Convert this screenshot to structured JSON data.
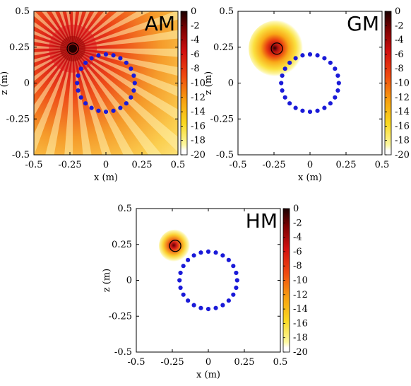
{
  "chart_data": [
    {
      "type": "heatmap",
      "panel_label": "AM",
      "xlabel": "x (m)",
      "ylabel": "z (m)",
      "xlim": [
        -0.5,
        0.5
      ],
      "ylim": [
        -0.5,
        0.5
      ],
      "xticks": [
        "-0.5",
        "-0.25",
        "0",
        "0.25",
        "0.5"
      ],
      "yticks": [
        "0.5",
        "0.25",
        "0",
        "-0.25",
        "-0.5"
      ],
      "colorbar": {
        "range": [
          -20,
          0
        ],
        "ticks": [
          "0",
          "-2",
          "-4",
          "-6",
          "-8",
          "-10",
          "-12",
          "-14",
          "-16",
          "-18",
          "-20"
        ]
      },
      "source": {
        "x": -0.23,
        "z": 0.24
      },
      "array": {
        "center_x": 0.0,
        "center_z": 0.0,
        "radius": 0.2,
        "elements": 24,
        "color": "#1a1ad8"
      },
      "field": "wide"
    },
    {
      "type": "heatmap",
      "panel_label": "GM",
      "xlabel": "x (m)",
      "ylabel": "z (m)",
      "xlim": [
        -0.5,
        0.5
      ],
      "ylim": [
        -0.5,
        0.5
      ],
      "xticks": [
        "-0.5",
        "-0.25",
        "0",
        "0.25",
        "0.5"
      ],
      "yticks": [
        "0.5",
        "0.25",
        "0",
        "-0.25",
        "-0.5"
      ],
      "colorbar": {
        "range": [
          -20,
          0
        ],
        "ticks": [
          "0",
          "-2",
          "-4",
          "-6",
          "-8",
          "-10",
          "-12",
          "-14",
          "-16",
          "-18",
          "-20"
        ]
      },
      "source": {
        "x": -0.23,
        "z": 0.24
      },
      "array": {
        "center_x": 0.0,
        "center_z": 0.0,
        "radius": 0.2,
        "elements": 24,
        "color": "#1a1ad8"
      },
      "field": "medium"
    },
    {
      "type": "heatmap",
      "panel_label": "HM",
      "xlabel": "x (m)",
      "ylabel": "z (m)",
      "xlim": [
        -0.5,
        0.5
      ],
      "ylim": [
        -0.5,
        0.5
      ],
      "xticks": [
        "-0.5",
        "-0.25",
        "0",
        "0.25",
        "0.5"
      ],
      "yticks": [
        "0.5",
        "0.25",
        "0",
        "-0.25",
        "-0.5"
      ],
      "colorbar": {
        "range": [
          -20,
          0
        ],
        "ticks": [
          "0",
          "-2",
          "-4",
          "-6",
          "-8",
          "-10",
          "-12",
          "-14",
          "-16",
          "-18",
          "-20"
        ]
      },
      "source": {
        "x": -0.23,
        "z": 0.24
      },
      "array": {
        "center_x": 0.0,
        "center_z": 0.0,
        "radius": 0.2,
        "elements": 24,
        "color": "#1a1ad8"
      },
      "field": "narrow"
    }
  ]
}
